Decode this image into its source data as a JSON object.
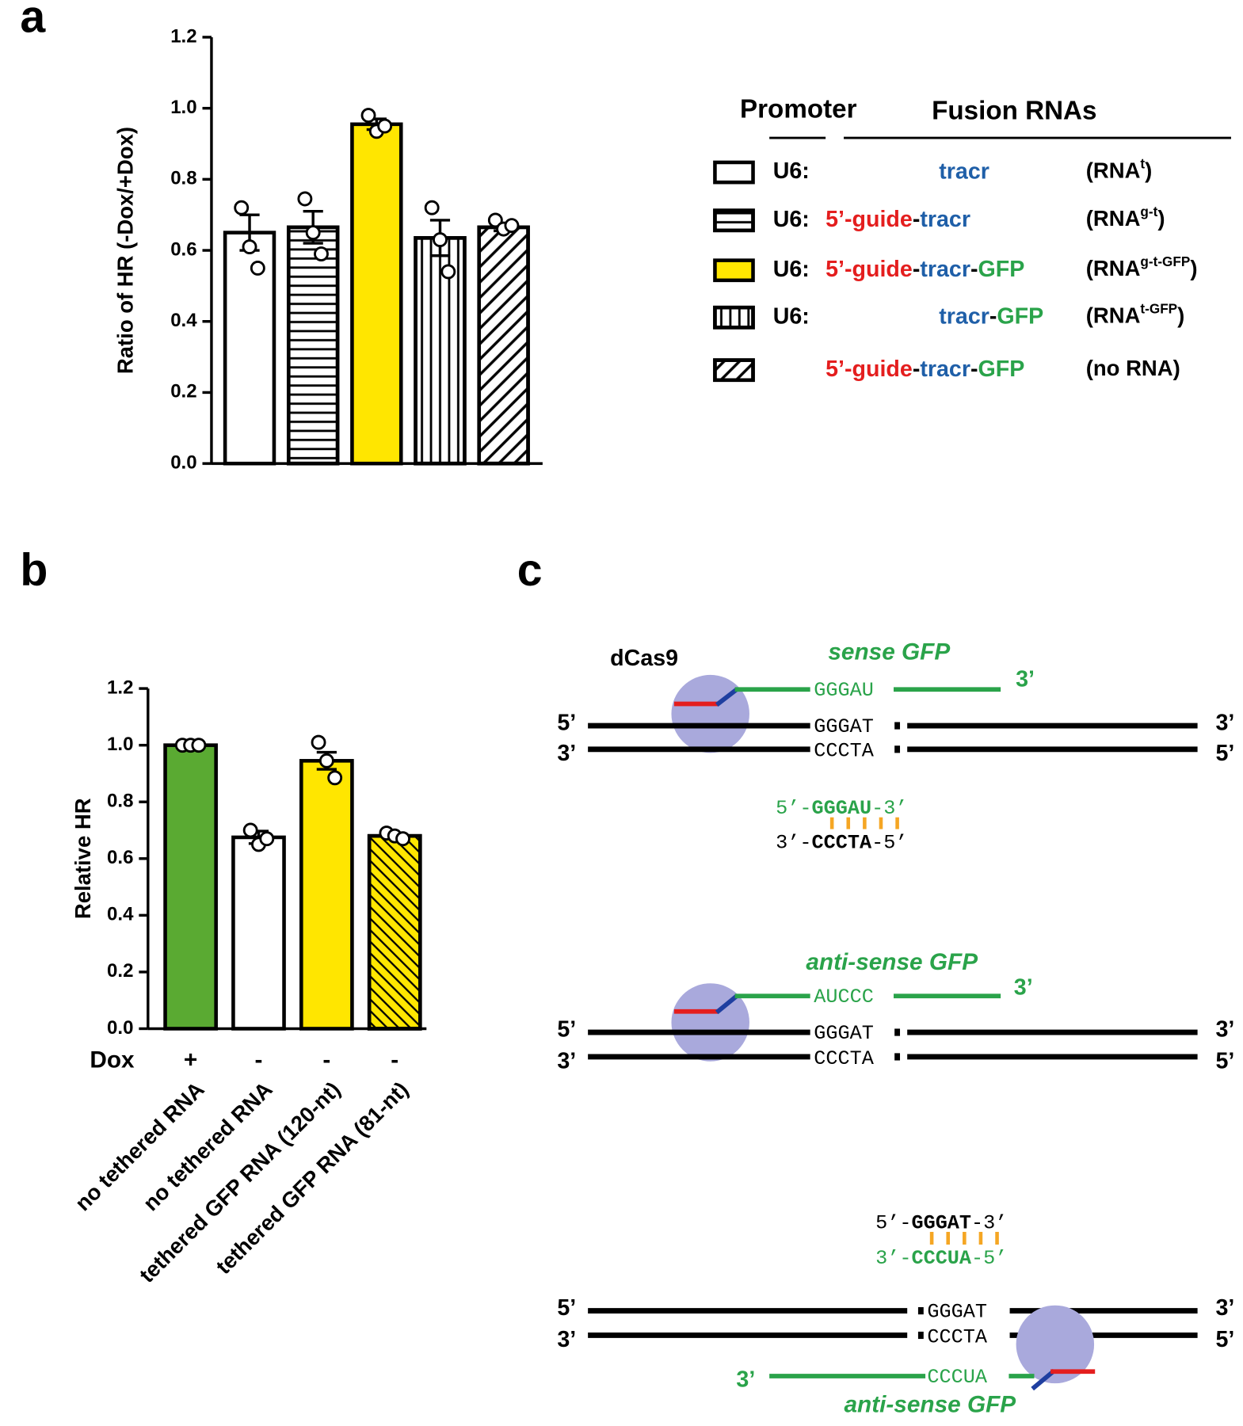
{
  "panel_labels": [
    "a",
    "b",
    "c"
  ],
  "chart_data": [
    {
      "type": "bar",
      "ylabel": "Ratio of HR (-Dox/+Dox)",
      "ylim": [
        0,
        1.2
      ],
      "yticks": [
        {
          "value": 0,
          "label": "0.0"
        },
        {
          "value": 0.2,
          "label": "0.2"
        },
        {
          "value": 0.4,
          "label": "0.4"
        },
        {
          "value": 0.6,
          "label": "0.6"
        },
        {
          "value": 0.8,
          "label": "0.8"
        },
        {
          "value": 1.0,
          "label": "1.0"
        },
        {
          "value": 1.2,
          "label": "1.2"
        }
      ],
      "values": [
        0.65,
        0.665,
        0.955,
        0.635,
        0.665
      ],
      "errors": [
        0.05,
        0.045,
        0.015,
        0.05,
        0.01
      ],
      "points": [
        [
          0.72,
          0.61,
          0.55
        ],
        [
          0.745,
          0.65,
          0.59
        ],
        [
          0.98,
          0.935,
          0.95
        ],
        [
          0.72,
          0.63,
          0.54
        ],
        [
          0.685,
          0.66,
          0.67
        ]
      ],
      "colors": [
        "#ffffff",
        "#ffffff",
        "#ffe600",
        "#ffffff",
        "#ffffff"
      ],
      "patterns": [
        "none",
        "horizontal",
        "none",
        "vertical",
        "diagonal"
      ]
    },
    {
      "type": "bar",
      "ylabel": "Relative HR",
      "ylim": [
        0,
        1.2
      ],
      "yticks": [
        {
          "value": 0,
          "label": "0.0"
        },
        {
          "value": 0.2,
          "label": "0.2"
        },
        {
          "value": 0.4,
          "label": "0.4"
        },
        {
          "value": 0.6,
          "label": "0.6"
        },
        {
          "value": 0.8,
          "label": "0.8"
        },
        {
          "value": 1.0,
          "label": "1.0"
        },
        {
          "value": 1.2,
          "label": "1.2"
        }
      ],
      "categories": [
        "no tethered RNA",
        "no tethered RNA",
        "tethered GFP RNA (120-nt)",
        "tethered GFP RNA (81-nt)"
      ],
      "row_label": "Dox",
      "row_values": [
        "+",
        "-",
        "-",
        "-"
      ],
      "values": [
        1.0,
        0.675,
        0.945,
        0.68
      ],
      "errors": [
        0.005,
        0.022,
        0.03,
        0.01
      ],
      "points": [
        [
          1.0,
          1.0,
          1.0
        ],
        [
          0.7,
          0.65,
          0.67
        ],
        [
          1.01,
          0.945,
          0.885
        ],
        [
          0.69,
          0.68,
          0.67
        ]
      ],
      "colors": [
        "#5aaa32",
        "#ffffff",
        "#ffe600",
        "#ffe600"
      ],
      "patterns": [
        "none",
        "none",
        "none",
        "backslash"
      ]
    }
  ],
  "legend": {
    "headers": [
      "Promoter",
      "Fusion RNAs"
    ],
    "rows": [
      {
        "promoter": "U6:",
        "parts": [
          {
            "text": "tracr",
            "color": "#1f5fa8"
          }
        ],
        "label": [
          "(RNA",
          "t",
          ")"
        ]
      },
      {
        "promoter": "U6:",
        "parts": [
          {
            "text": "5’-guide",
            "color": "#e41e1e"
          },
          {
            "text": "-",
            "color": "#000000"
          },
          {
            "text": "tracr",
            "color": "#1f5fa8"
          }
        ],
        "label": [
          "(RNA",
          "g-t",
          ")"
        ]
      },
      {
        "promoter": "U6:",
        "parts": [
          {
            "text": "5’-guide",
            "color": "#e41e1e"
          },
          {
            "text": "-",
            "color": "#000000"
          },
          {
            "text": "tracr",
            "color": "#1f5fa8"
          },
          {
            "text": "-",
            "color": "#000000"
          },
          {
            "text": "GFP",
            "color": "#2aa34a"
          }
        ],
        "label": [
          "(RNA",
          "g-t-GFP",
          ")"
        ]
      },
      {
        "promoter": "U6:",
        "parts": [
          {
            "text": "tracr",
            "color": "#1f5fa8"
          },
          {
            "text": "-",
            "color": "#000000"
          },
          {
            "text": "GFP",
            "color": "#2aa34a"
          }
        ],
        "label": [
          "(RNA",
          "t-GFP",
          ")"
        ]
      },
      {
        "parts": [
          {
            "text": "5’-guide",
            "color": "#e41e1e"
          },
          {
            "text": "-",
            "color": "#000000"
          },
          {
            "text": "tracr",
            "color": "#1f5fa8"
          },
          {
            "text": "-",
            "color": "#000000"
          },
          {
            "text": "GFP",
            "color": "#2aa34a"
          }
        ],
        "label": [
          "(no RNA)"
        ]
      }
    ]
  },
  "diagram": {
    "structures": [
      {
        "protein": "dCas9",
        "rna_name": "sense GFP",
        "rna_seq": "GGGAU",
        "rna_end": "3’",
        "top": [
          "5’",
          "GGGAT",
          "3’"
        ],
        "bottom": [
          "3’",
          "CCCTA",
          "5’"
        ],
        "pairing": {
          "top": [
            "5’-",
            "GGGAU",
            "-3’"
          ],
          "bottom": [
            "3’-",
            "CCCTA",
            "-5’"
          ]
        }
      },
      {
        "rna_name": "anti-sense GFP",
        "rna_seq": "AUCCC",
        "rna_end": "3’",
        "top": [
          "5’",
          "GGGAT",
          "3’"
        ],
        "bottom": [
          "3’",
          "CCCTA",
          "5’"
        ]
      },
      {
        "rna_name": "anti-sense GFP",
        "rna_seq": "CCCUA",
        "rna_end": "3’",
        "top": [
          "5’",
          "GGGAT",
          "3’"
        ],
        "bottom": [
          "3’",
          "CCCTA",
          "5’"
        ],
        "pairing": {
          "top": [
            "5’-",
            "GGGAT",
            "-3’"
          ],
          "bottom": [
            "3’-",
            "CCCUA",
            "-5’"
          ]
        }
      }
    ]
  }
}
